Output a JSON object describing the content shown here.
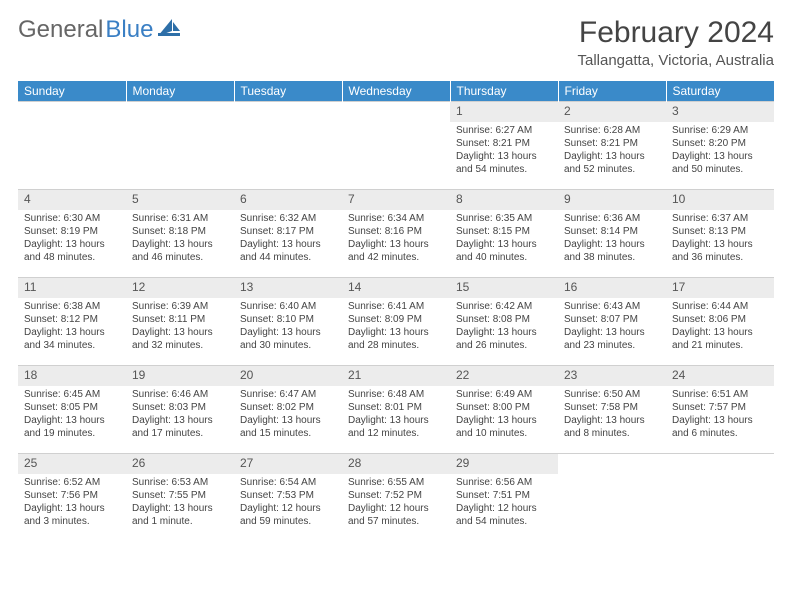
{
  "brand": {
    "part1": "General",
    "part2": "Blue"
  },
  "title": "February 2024",
  "subtitle": "Tallangatta, Victoria, Australia",
  "colors": {
    "header_bg": "#3a8ac9",
    "header_text": "#ffffff",
    "daynum_bg": "#ececec",
    "body_text": "#444444",
    "brand_accent": "#3a7fc4"
  },
  "day_headers": [
    "Sunday",
    "Monday",
    "Tuesday",
    "Wednesday",
    "Thursday",
    "Friday",
    "Saturday"
  ],
  "weeks": [
    [
      {
        "blank": true
      },
      {
        "blank": true
      },
      {
        "blank": true
      },
      {
        "blank": true
      },
      {
        "n": "1",
        "sr": "Sunrise: 6:27 AM",
        "ss": "Sunset: 8:21 PM",
        "d1": "Daylight: 13 hours",
        "d2": "and 54 minutes."
      },
      {
        "n": "2",
        "sr": "Sunrise: 6:28 AM",
        "ss": "Sunset: 8:21 PM",
        "d1": "Daylight: 13 hours",
        "d2": "and 52 minutes."
      },
      {
        "n": "3",
        "sr": "Sunrise: 6:29 AM",
        "ss": "Sunset: 8:20 PM",
        "d1": "Daylight: 13 hours",
        "d2": "and 50 minutes."
      }
    ],
    [
      {
        "n": "4",
        "sr": "Sunrise: 6:30 AM",
        "ss": "Sunset: 8:19 PM",
        "d1": "Daylight: 13 hours",
        "d2": "and 48 minutes."
      },
      {
        "n": "5",
        "sr": "Sunrise: 6:31 AM",
        "ss": "Sunset: 8:18 PM",
        "d1": "Daylight: 13 hours",
        "d2": "and 46 minutes."
      },
      {
        "n": "6",
        "sr": "Sunrise: 6:32 AM",
        "ss": "Sunset: 8:17 PM",
        "d1": "Daylight: 13 hours",
        "d2": "and 44 minutes."
      },
      {
        "n": "7",
        "sr": "Sunrise: 6:34 AM",
        "ss": "Sunset: 8:16 PM",
        "d1": "Daylight: 13 hours",
        "d2": "and 42 minutes."
      },
      {
        "n": "8",
        "sr": "Sunrise: 6:35 AM",
        "ss": "Sunset: 8:15 PM",
        "d1": "Daylight: 13 hours",
        "d2": "and 40 minutes."
      },
      {
        "n": "9",
        "sr": "Sunrise: 6:36 AM",
        "ss": "Sunset: 8:14 PM",
        "d1": "Daylight: 13 hours",
        "d2": "and 38 minutes."
      },
      {
        "n": "10",
        "sr": "Sunrise: 6:37 AM",
        "ss": "Sunset: 8:13 PM",
        "d1": "Daylight: 13 hours",
        "d2": "and 36 minutes."
      }
    ],
    [
      {
        "n": "11",
        "sr": "Sunrise: 6:38 AM",
        "ss": "Sunset: 8:12 PM",
        "d1": "Daylight: 13 hours",
        "d2": "and 34 minutes."
      },
      {
        "n": "12",
        "sr": "Sunrise: 6:39 AM",
        "ss": "Sunset: 8:11 PM",
        "d1": "Daylight: 13 hours",
        "d2": "and 32 minutes."
      },
      {
        "n": "13",
        "sr": "Sunrise: 6:40 AM",
        "ss": "Sunset: 8:10 PM",
        "d1": "Daylight: 13 hours",
        "d2": "and 30 minutes."
      },
      {
        "n": "14",
        "sr": "Sunrise: 6:41 AM",
        "ss": "Sunset: 8:09 PM",
        "d1": "Daylight: 13 hours",
        "d2": "and 28 minutes."
      },
      {
        "n": "15",
        "sr": "Sunrise: 6:42 AM",
        "ss": "Sunset: 8:08 PM",
        "d1": "Daylight: 13 hours",
        "d2": "and 26 minutes."
      },
      {
        "n": "16",
        "sr": "Sunrise: 6:43 AM",
        "ss": "Sunset: 8:07 PM",
        "d1": "Daylight: 13 hours",
        "d2": "and 23 minutes."
      },
      {
        "n": "17",
        "sr": "Sunrise: 6:44 AM",
        "ss": "Sunset: 8:06 PM",
        "d1": "Daylight: 13 hours",
        "d2": "and 21 minutes."
      }
    ],
    [
      {
        "n": "18",
        "sr": "Sunrise: 6:45 AM",
        "ss": "Sunset: 8:05 PM",
        "d1": "Daylight: 13 hours",
        "d2": "and 19 minutes."
      },
      {
        "n": "19",
        "sr": "Sunrise: 6:46 AM",
        "ss": "Sunset: 8:03 PM",
        "d1": "Daylight: 13 hours",
        "d2": "and 17 minutes."
      },
      {
        "n": "20",
        "sr": "Sunrise: 6:47 AM",
        "ss": "Sunset: 8:02 PM",
        "d1": "Daylight: 13 hours",
        "d2": "and 15 minutes."
      },
      {
        "n": "21",
        "sr": "Sunrise: 6:48 AM",
        "ss": "Sunset: 8:01 PM",
        "d1": "Daylight: 13 hours",
        "d2": "and 12 minutes."
      },
      {
        "n": "22",
        "sr": "Sunrise: 6:49 AM",
        "ss": "Sunset: 8:00 PM",
        "d1": "Daylight: 13 hours",
        "d2": "and 10 minutes."
      },
      {
        "n": "23",
        "sr": "Sunrise: 6:50 AM",
        "ss": "Sunset: 7:58 PM",
        "d1": "Daylight: 13 hours",
        "d2": "and 8 minutes."
      },
      {
        "n": "24",
        "sr": "Sunrise: 6:51 AM",
        "ss": "Sunset: 7:57 PM",
        "d1": "Daylight: 13 hours",
        "d2": "and 6 minutes."
      }
    ],
    [
      {
        "n": "25",
        "sr": "Sunrise: 6:52 AM",
        "ss": "Sunset: 7:56 PM",
        "d1": "Daylight: 13 hours",
        "d2": "and 3 minutes."
      },
      {
        "n": "26",
        "sr": "Sunrise: 6:53 AM",
        "ss": "Sunset: 7:55 PM",
        "d1": "Daylight: 13 hours",
        "d2": "and 1 minute."
      },
      {
        "n": "27",
        "sr": "Sunrise: 6:54 AM",
        "ss": "Sunset: 7:53 PM",
        "d1": "Daylight: 12 hours",
        "d2": "and 59 minutes."
      },
      {
        "n": "28",
        "sr": "Sunrise: 6:55 AM",
        "ss": "Sunset: 7:52 PM",
        "d1": "Daylight: 12 hours",
        "d2": "and 57 minutes."
      },
      {
        "n": "29",
        "sr": "Sunrise: 6:56 AM",
        "ss": "Sunset: 7:51 PM",
        "d1": "Daylight: 12 hours",
        "d2": "and 54 minutes."
      },
      {
        "blank": true
      },
      {
        "blank": true
      }
    ]
  ]
}
